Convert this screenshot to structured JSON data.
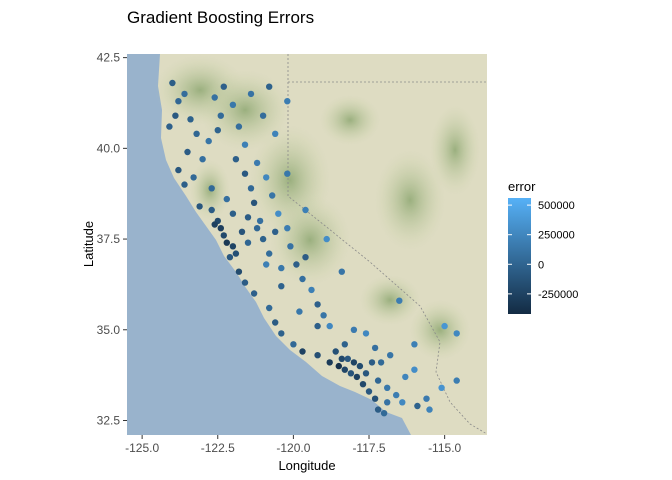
{
  "chart_data": {
    "type": "scatter",
    "title": "Gradient Boosting Errors",
    "xlabel": "Longitude",
    "ylabel": "Latitude",
    "xlim": [
      -125.5,
      -113.6
    ],
    "ylim": [
      32.1,
      42.6
    ],
    "xticks": [
      -125.0,
      -122.5,
      -120.0,
      -117.5,
      -115.0
    ],
    "xtick_labels": [
      "-125.0",
      "-122.5",
      "-120.0",
      "-117.5",
      "-115.0"
    ],
    "yticks": [
      32.5,
      35.0,
      37.5,
      40.0,
      42.5
    ],
    "ytick_labels": [
      "32.5",
      "35.0",
      "37.5",
      "40.0",
      "42.5"
    ],
    "grid": false,
    "background": "terrain basemap",
    "legend": {
      "title": "error",
      "placement": "right",
      "breaks": [
        500000,
        250000,
        0,
        -250000
      ],
      "labels": [
        "500000",
        "250000",
        "0",
        "-250000"
      ],
      "range": [
        -420000,
        560000
      ],
      "low_color": "#132b43",
      "high_color": "#56b1f7"
    },
    "series": [
      {
        "points": [
          [
            -124.1,
            40.6,
            -30000
          ],
          [
            -123.9,
            40.9,
            -80000
          ],
          [
            -123.8,
            41.3,
            20000
          ],
          [
            -124.0,
            41.8,
            -50000
          ],
          [
            -123.6,
            41.5,
            60000
          ],
          [
            -123.4,
            40.8,
            -20000
          ],
          [
            -123.2,
            40.4,
            10000
          ],
          [
            -123.5,
            39.9,
            -60000
          ],
          [
            -123.8,
            39.4,
            -100000
          ],
          [
            -123.6,
            39.0,
            -40000
          ],
          [
            -123.3,
            39.2,
            30000
          ],
          [
            -123.0,
            39.7,
            80000
          ],
          [
            -122.8,
            40.2,
            120000
          ],
          [
            -122.5,
            40.5,
            -10000
          ],
          [
            -122.4,
            40.9,
            50000
          ],
          [
            -122.6,
            41.4,
            90000
          ],
          [
            -122.3,
            41.7,
            -30000
          ],
          [
            -122.0,
            41.2,
            140000
          ],
          [
            -121.8,
            40.6,
            70000
          ],
          [
            -121.6,
            40.1,
            200000
          ],
          [
            -121.9,
            39.7,
            -40000
          ],
          [
            -121.6,
            39.3,
            -80000
          ],
          [
            -121.4,
            38.9,
            30000
          ],
          [
            -121.2,
            39.6,
            160000
          ],
          [
            -120.9,
            39.2,
            250000
          ],
          [
            -120.7,
            38.7,
            120000
          ],
          [
            -120.5,
            38.2,
            300000
          ],
          [
            -120.2,
            37.8,
            180000
          ],
          [
            -121.3,
            38.5,
            -120000
          ],
          [
            -121.5,
            38.1,
            -60000
          ],
          [
            -121.2,
            37.8,
            20000
          ],
          [
            -121.0,
            37.5,
            -20000
          ],
          [
            -120.8,
            37.1,
            60000
          ],
          [
            -120.4,
            36.7,
            140000
          ],
          [
            -119.9,
            36.8,
            -40000
          ],
          [
            -119.7,
            36.4,
            80000
          ],
          [
            -119.4,
            36.1,
            200000
          ],
          [
            -119.2,
            35.7,
            -30000
          ],
          [
            -119.0,
            35.4,
            120000
          ],
          [
            -118.8,
            35.1,
            260000
          ],
          [
            -122.4,
            37.8,
            -280000
          ],
          [
            -122.3,
            37.6,
            -200000
          ],
          [
            -122.2,
            37.4,
            -320000
          ],
          [
            -122.0,
            37.3,
            -240000
          ],
          [
            -121.9,
            37.1,
            -150000
          ],
          [
            -122.1,
            37.0,
            -90000
          ],
          [
            -121.8,
            36.6,
            -180000
          ],
          [
            -121.6,
            36.3,
            -60000
          ],
          [
            -121.3,
            36.0,
            -30000
          ],
          [
            -120.8,
            35.6,
            40000
          ],
          [
            -120.6,
            35.2,
            -70000
          ],
          [
            -120.4,
            34.9,
            -20000
          ],
          [
            -120.0,
            34.6,
            30000
          ],
          [
            -119.7,
            34.4,
            -250000
          ],
          [
            -119.2,
            34.3,
            -160000
          ],
          [
            -118.8,
            34.1,
            -300000
          ],
          [
            -118.5,
            34.0,
            -380000
          ],
          [
            -118.3,
            33.9,
            -220000
          ],
          [
            -118.1,
            33.8,
            -120000
          ],
          [
            -117.9,
            33.7,
            -260000
          ],
          [
            -117.7,
            33.5,
            -200000
          ],
          [
            -117.5,
            33.3,
            -90000
          ],
          [
            -117.3,
            33.1,
            -140000
          ],
          [
            -117.2,
            32.8,
            -60000
          ],
          [
            -117.0,
            32.7,
            40000
          ],
          [
            -116.9,
            33.0,
            100000
          ],
          [
            -116.6,
            33.2,
            180000
          ],
          [
            -116.3,
            33.7,
            240000
          ],
          [
            -116.0,
            33.9,
            300000
          ],
          [
            -115.6,
            33.1,
            160000
          ],
          [
            -115.5,
            32.8,
            220000
          ],
          [
            -115.1,
            33.4,
            340000
          ],
          [
            -114.6,
            33.6,
            180000
          ],
          [
            -114.6,
            34.9,
            260000
          ],
          [
            -115.0,
            35.1,
            360000
          ],
          [
            -116.0,
            34.6,
            200000
          ],
          [
            -116.8,
            34.3,
            120000
          ],
          [
            -117.3,
            34.5,
            80000
          ],
          [
            -117.6,
            34.9,
            260000
          ],
          [
            -118.0,
            35.0,
            160000
          ],
          [
            -118.3,
            34.6,
            -20000
          ],
          [
            -117.1,
            34.1,
            40000
          ],
          [
            -117.4,
            34.1,
            -60000
          ],
          [
            -117.8,
            34.0,
            -180000
          ],
          [
            -118.0,
            34.1,
            -240000
          ],
          [
            -118.2,
            34.2,
            -90000
          ],
          [
            -116.5,
            35.8,
            180000
          ],
          [
            -118.4,
            36.6,
            120000
          ],
          [
            -118.9,
            37.5,
            300000
          ],
          [
            -119.6,
            38.3,
            200000
          ],
          [
            -120.2,
            39.3,
            140000
          ],
          [
            -120.6,
            40.4,
            220000
          ],
          [
            -121.0,
            40.9,
            60000
          ],
          [
            -121.4,
            41.5,
            100000
          ],
          [
            -120.8,
            41.7,
            -20000
          ],
          [
            -120.2,
            41.3,
            180000
          ],
          [
            -123.1,
            38.4,
            -100000
          ],
          [
            -122.7,
            38.3,
            -60000
          ],
          [
            -122.5,
            38.0,
            -200000
          ],
          [
            -122.6,
            37.9,
            -260000
          ],
          [
            -122.7,
            38.9,
            40000
          ],
          [
            -122.2,
            38.6,
            80000
          ],
          [
            -122.0,
            38.2,
            -40000
          ],
          [
            -121.7,
            37.7,
            -120000
          ],
          [
            -121.5,
            37.4,
            10000
          ],
          [
            -120.9,
            36.8,
            200000
          ],
          [
            -120.4,
            36.2,
            -10000
          ],
          [
            -119.8,
            35.5,
            140000
          ],
          [
            -119.2,
            35.1,
            -40000
          ],
          [
            -118.6,
            34.4,
            -140000
          ],
          [
            -118.4,
            34.2,
            -200000
          ],
          [
            -117.6,
            33.8,
            -100000
          ],
          [
            -117.2,
            33.6,
            20000
          ],
          [
            -116.9,
            33.4,
            140000
          ],
          [
            -116.4,
            33.0,
            260000
          ],
          [
            -115.9,
            32.9,
            -20000
          ],
          [
            -121.1,
            38.0,
            80000
          ],
          [
            -120.6,
            37.7,
            -30000
          ],
          [
            -120.1,
            37.3,
            100000
          ],
          [
            -119.6,
            37.0,
            -60000
          ]
        ]
      }
    ]
  }
}
